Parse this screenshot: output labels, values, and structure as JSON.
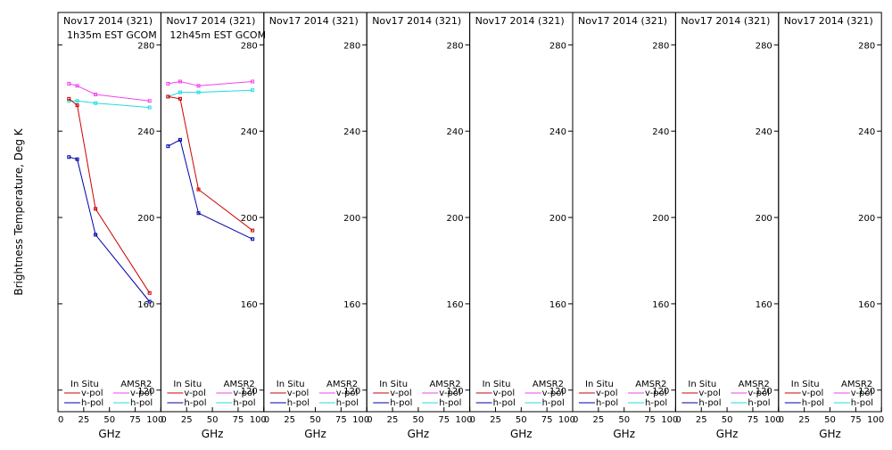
{
  "chart_data": {
    "type": "line",
    "ylabel": "Brightness Temperature, Deg K",
    "xlabel": "GHz",
    "xlim": [
      0,
      100
    ],
    "ylim": [
      110,
      295
    ],
    "xticks": [
      0,
      25,
      50,
      75,
      100
    ],
    "yticks": [
      120,
      160,
      200,
      240,
      280
    ],
    "legend": {
      "in_situ_title": "In Situ",
      "amsr2_title": "AMSR2",
      "vpol": "v-pol",
      "hpol": "h-pol"
    },
    "colors": {
      "in_situ_v": "#cc0000",
      "in_situ_h": "#0000aa",
      "amsr2_v": "#ee44ee",
      "amsr2_h": "#22dddd"
    },
    "panels": [
      {
        "title": "Nov17 2014 (321)",
        "subtitle": "1h35m EST GCOM",
        "series": [
          {
            "key": "amsr2_v",
            "x": [
              10.65,
              18.7,
              36.5,
              89
            ],
            "y": [
              262,
              261,
              257,
              254
            ]
          },
          {
            "key": "amsr2_h",
            "x": [
              10.65,
              18.7,
              36.5,
              89
            ],
            "y": [
              254,
              254,
              253,
              251
            ]
          },
          {
            "key": "in_situ_v",
            "x": [
              10.65,
              18.7,
              36.5,
              89
            ],
            "y": [
              255,
              252,
              204,
              165
            ]
          },
          {
            "key": "in_situ_h",
            "x": [
              10.65,
              18.7,
              36.5,
              89
            ],
            "y": [
              228,
              227,
              192,
              161
            ]
          }
        ]
      },
      {
        "title": "Nov17 2014 (321)",
        "subtitle": "12h45m EST GCOM",
        "series": [
          {
            "key": "amsr2_v",
            "x": [
              6.9,
              18.7,
              36.5,
              89
            ],
            "y": [
              262,
              263,
              261,
              263
            ]
          },
          {
            "key": "amsr2_h",
            "x": [
              6.9,
              18.7,
              36.5,
              89
            ],
            "y": [
              256,
              258,
              258,
              259
            ]
          },
          {
            "key": "in_situ_v",
            "x": [
              6.9,
              18.7,
              36.5,
              89
            ],
            "y": [
              256,
              255,
              213,
              194
            ]
          },
          {
            "key": "in_situ_h",
            "x": [
              6.9,
              18.7,
              36.5,
              89
            ],
            "y": [
              233,
              236,
              202,
              190
            ]
          }
        ]
      },
      {
        "title": "Nov17 2014 (321)",
        "subtitle": "",
        "series": []
      },
      {
        "title": "Nov17 2014 (321)",
        "subtitle": "",
        "series": []
      },
      {
        "title": "Nov17 2014 (321)",
        "subtitle": "",
        "series": []
      },
      {
        "title": "Nov17 2014 (321)",
        "subtitle": "",
        "series": []
      },
      {
        "title": "Nov17 2014 (321)",
        "subtitle": "",
        "series": []
      },
      {
        "title": "Nov17 2014 (321)",
        "subtitle": "",
        "series": []
      }
    ]
  }
}
